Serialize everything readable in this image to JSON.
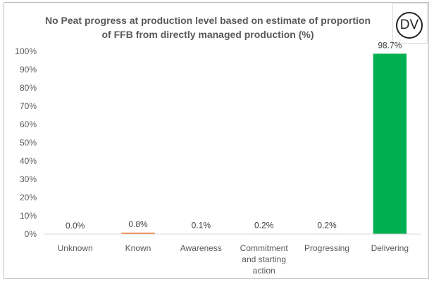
{
  "chart_data": {
    "type": "bar",
    "title": "No Peat progress at production level based on estimate of proportion\nof FFB from directly managed production (%)",
    "xlabel": "",
    "ylabel": "",
    "categories": [
      "Unknown",
      "Known",
      "Awareness",
      "Commitment and starting action",
      "Progressing",
      "Delivering"
    ],
    "category_lines": [
      [
        "Unknown"
      ],
      [
        "Known"
      ],
      [
        "Awareness"
      ],
      [
        "Commitment",
        "and starting",
        "action"
      ],
      [
        "Progressing"
      ],
      [
        "Delivering"
      ]
    ],
    "values": [
      0.0,
      0.8,
      0.1,
      0.2,
      0.2,
      98.7
    ],
    "data_labels": [
      "0.0%",
      "0.8%",
      "0.1%",
      "0.2%",
      "0.2%",
      "98.7%"
    ],
    "bar_colors": [
      "#ed7d31",
      "#ed7d31",
      "#00b050",
      "#00b050",
      "#00b050",
      "#00b050"
    ],
    "ylim": [
      0,
      100
    ],
    "yticks": [
      "0%",
      "10%",
      "20%",
      "30%",
      "40%",
      "50%",
      "60%",
      "70%",
      "80%",
      "90%",
      "100%"
    ],
    "grid": false,
    "legend": "none"
  },
  "logo": {
    "text": "DV",
    "icon": "dv-circle-logo"
  },
  "colors": {
    "axis": "#d9d9d9",
    "text": "#595959",
    "border": "#bfbfbf"
  }
}
